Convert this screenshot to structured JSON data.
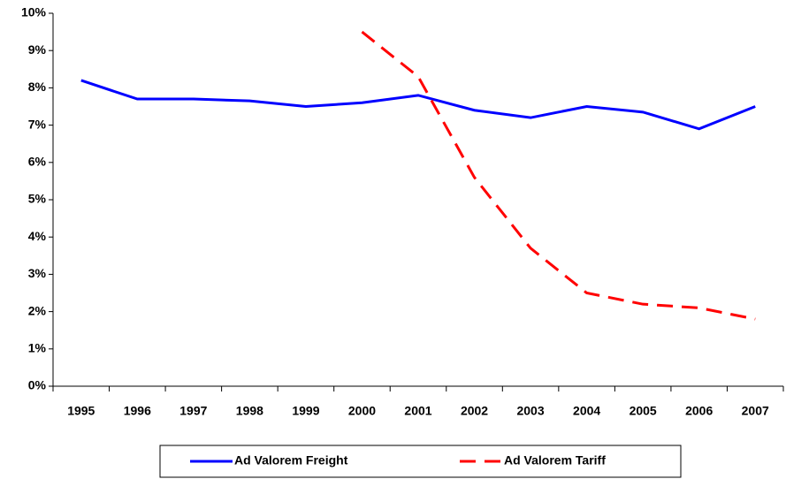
{
  "chart_data": {
    "type": "line",
    "categories": [
      "1995",
      "1996",
      "1997",
      "1998",
      "1999",
      "2000",
      "2001",
      "2002",
      "2003",
      "2004",
      "2005",
      "2006",
      "2007"
    ],
    "series": [
      {
        "name": "Ad Valorem Freight",
        "color": "#0000ff",
        "dash": false,
        "values": [
          8.2,
          7.7,
          7.7,
          7.65,
          7.5,
          7.6,
          7.8,
          7.4,
          7.2,
          7.5,
          7.35,
          6.9,
          7.5
        ]
      },
      {
        "name": "Ad Valorem Tariff",
        "color": "#ff0000",
        "dash": true,
        "values": [
          null,
          null,
          null,
          null,
          null,
          9.5,
          8.3,
          5.6,
          3.7,
          2.5,
          2.2,
          2.1,
          1.8
        ]
      }
    ],
    "ylim": [
      0,
      10
    ],
    "yticks": [
      {
        "value": 0,
        "label": "0%"
      },
      {
        "value": 1,
        "label": "1%"
      },
      {
        "value": 2,
        "label": "2%"
      },
      {
        "value": 3,
        "label": "3%"
      },
      {
        "value": 4,
        "label": "4%"
      },
      {
        "value": 5,
        "label": "5%"
      },
      {
        "value": 6,
        "label": "6%"
      },
      {
        "value": 7,
        "label": "7%"
      },
      {
        "value": 8,
        "label": "8%"
      },
      {
        "value": 9,
        "label": "9%"
      },
      {
        "value": 10,
        "label": "10%"
      }
    ],
    "legend": "bottom"
  }
}
